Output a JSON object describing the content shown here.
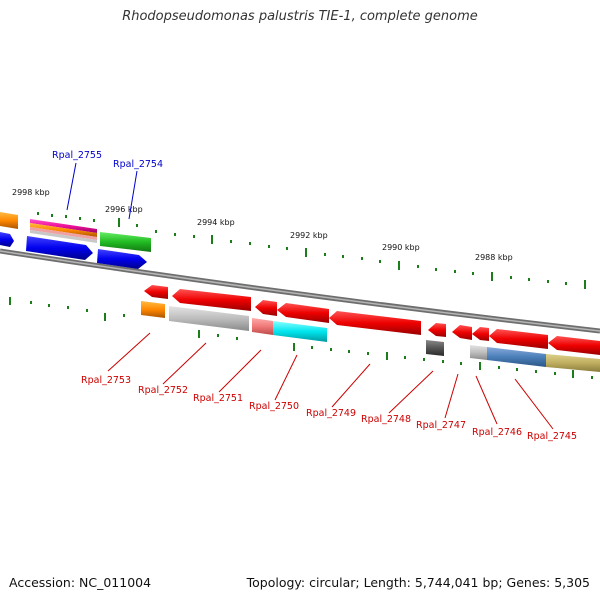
{
  "title": "Rhodopseudomonas palustris TIE-1, complete genome",
  "footer": {
    "accession": "Accession: NC_011004",
    "topology": "Topology: circular; Length: 5,744,041 bp; Genes: 5,305"
  },
  "kbp_labels": [
    "2998 kbp",
    "2996 kbp",
    "2994 kbp",
    "2992 kbp",
    "2990 kbp",
    "2988 kbp"
  ],
  "genes_top": [
    "Rpal_2755",
    "Rpal_2754"
  ],
  "genes_bottom": [
    "Rpal_2753",
    "Rpal_2752",
    "Rpal_2751",
    "Rpal_2750",
    "Rpal_2749",
    "Rpal_2748",
    "Rpal_2747",
    "Rpal_2746",
    "Rpal_2745"
  ],
  "colors": {
    "forward_label": "#0000cc",
    "reverse_label": "#cc0000",
    "backbone": "#808080",
    "ticks": "#1a7f1a"
  }
}
